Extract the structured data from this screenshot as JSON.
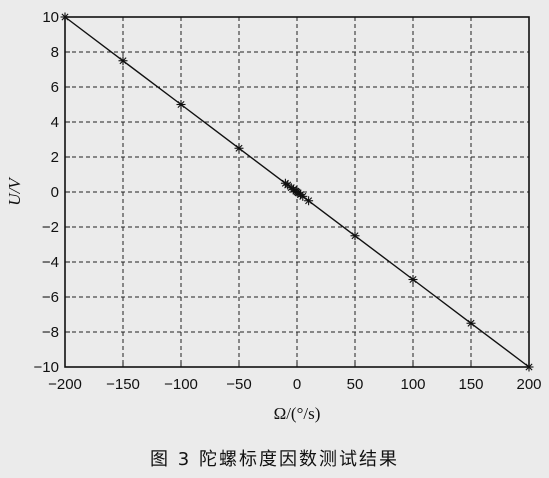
{
  "caption": "图 3  陀螺标度因数测试结果",
  "chart_data": {
    "type": "line",
    "title": "",
    "xlabel": "Ω/(°/s)",
    "ylabel": "U/V",
    "xlim": [
      -200,
      200
    ],
    "ylim": [
      -10,
      10
    ],
    "xticks": [
      -200,
      -150,
      -100,
      -50,
      0,
      50,
      100,
      150,
      200
    ],
    "yticks": [
      -10,
      -8,
      -6,
      -4,
      -2,
      0,
      2,
      4,
      6,
      8,
      10
    ],
    "grid": true,
    "grid_style": "dashed",
    "marker": "asterisk",
    "series": [
      {
        "x": [
          -200,
          -150,
          -100,
          -50,
          -10,
          -8,
          -5,
          -3,
          -1,
          0,
          1,
          3,
          5,
          10,
          50,
          100,
          150,
          200
        ],
        "y": [
          10,
          7.5,
          5,
          2.5,
          0.5,
          0.4,
          0.25,
          0.15,
          0.05,
          0,
          -0.05,
          -0.15,
          -0.25,
          -0.5,
          -2.5,
          -5,
          -7.5,
          -10
        ]
      }
    ],
    "colors": {
      "line": "#111111",
      "grid": "#222222",
      "background": "#ebebeb"
    }
  }
}
